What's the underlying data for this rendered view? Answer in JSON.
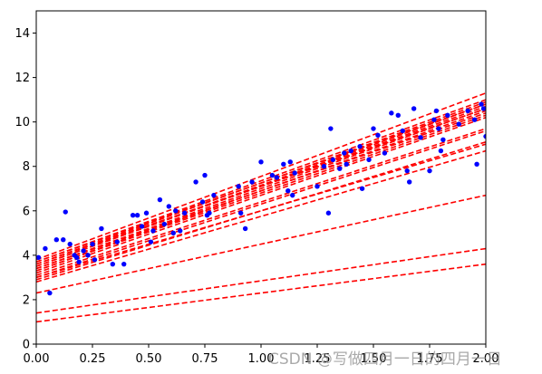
{
  "chart_data": {
    "type": "scatter",
    "xlim": [
      0.0,
      2.0
    ],
    "ylim": [
      0,
      15
    ],
    "x_ticks": [
      0.0,
      0.25,
      0.5,
      0.75,
      1.0,
      1.25,
      1.5,
      1.75,
      2.0
    ],
    "x_tick_labels": [
      "0.00",
      "0.25",
      "0.50",
      "0.75",
      "1.00",
      "1.25",
      "1.50",
      "1.75",
      "2.00"
    ],
    "y_ticks": [
      0,
      2,
      4,
      6,
      8,
      10,
      12,
      14
    ],
    "y_tick_labels": [
      "0",
      "2",
      "4",
      "6",
      "8",
      "10",
      "12",
      "14"
    ],
    "grid": false,
    "colors": {
      "points": "#0000ff",
      "lines": "#ff0000"
    },
    "series": [
      {
        "kind": "points",
        "points": [
          [
            0.01,
            3.9
          ],
          [
            0.04,
            4.3
          ],
          [
            0.06,
            2.3
          ],
          [
            0.09,
            4.7
          ],
          [
            0.12,
            4.7
          ],
          [
            0.13,
            5.95
          ],
          [
            0.15,
            4.5
          ],
          [
            0.17,
            4.0
          ],
          [
            0.18,
            3.9
          ],
          [
            0.19,
            3.7
          ],
          [
            0.21,
            4.2
          ],
          [
            0.23,
            4.0
          ],
          [
            0.25,
            4.5
          ],
          [
            0.26,
            3.8
          ],
          [
            0.29,
            5.2
          ],
          [
            0.34,
            3.6
          ],
          [
            0.36,
            4.6
          ],
          [
            0.39,
            3.6
          ],
          [
            0.43,
            5.8
          ],
          [
            0.45,
            5.8
          ],
          [
            0.47,
            5.3
          ],
          [
            0.49,
            5.9
          ],
          [
            0.51,
            4.6
          ],
          [
            0.52,
            5.1
          ],
          [
            0.55,
            6.5
          ],
          [
            0.57,
            5.4
          ],
          [
            0.59,
            6.2
          ],
          [
            0.61,
            5.0
          ],
          [
            0.62,
            6.0
          ],
          [
            0.64,
            5.1
          ],
          [
            0.66,
            5.9
          ],
          [
            0.71,
            7.3
          ],
          [
            0.74,
            6.4
          ],
          [
            0.75,
            7.6
          ],
          [
            0.76,
            5.8
          ],
          [
            0.77,
            5.9
          ],
          [
            0.79,
            6.7
          ],
          [
            0.9,
            7.1
          ],
          [
            0.91,
            5.9
          ],
          [
            0.93,
            5.2
          ],
          [
            0.96,
            7.3
          ],
          [
            1.0,
            8.2
          ],
          [
            1.05,
            7.6
          ],
          [
            1.07,
            7.5
          ],
          [
            1.1,
            8.1
          ],
          [
            1.12,
            6.9
          ],
          [
            1.13,
            8.2
          ],
          [
            1.14,
            6.7
          ],
          [
            1.15,
            7.7
          ],
          [
            1.25,
            7.1
          ],
          [
            1.28,
            8.0
          ],
          [
            1.3,
            5.9
          ],
          [
            1.31,
            9.7
          ],
          [
            1.32,
            8.3
          ],
          [
            1.35,
            7.9
          ],
          [
            1.37,
            8.6
          ],
          [
            1.38,
            8.1
          ],
          [
            1.4,
            8.7
          ],
          [
            1.44,
            8.9
          ],
          [
            1.45,
            7.0
          ],
          [
            1.48,
            8.3
          ],
          [
            1.5,
            9.7
          ],
          [
            1.52,
            9.4
          ],
          [
            1.55,
            8.6
          ],
          [
            1.58,
            10.4
          ],
          [
            1.61,
            10.3
          ],
          [
            1.63,
            9.6
          ],
          [
            1.65,
            7.8
          ],
          [
            1.66,
            7.3
          ],
          [
            1.68,
            10.6
          ],
          [
            1.71,
            9.3
          ],
          [
            1.75,
            7.8
          ],
          [
            1.77,
            10.1
          ],
          [
            1.78,
            10.5
          ],
          [
            1.79,
            9.7
          ],
          [
            1.8,
            8.7
          ],
          [
            1.81,
            9.2
          ],
          [
            1.83,
            10.3
          ],
          [
            1.88,
            9.9
          ],
          [
            1.92,
            10.5
          ],
          [
            1.95,
            10.1
          ],
          [
            1.96,
            8.1
          ],
          [
            1.98,
            10.8
          ],
          [
            1.99,
            10.6
          ],
          [
            2.0,
            9.35
          ]
        ]
      },
      {
        "kind": "lines",
        "lines": [
          [
            1.0,
            3.6
          ],
          [
            1.4,
            4.3
          ],
          [
            2.3,
            6.7
          ],
          [
            2.8,
            8.7
          ],
          [
            2.9,
            9.1
          ],
          [
            3.0,
            9.0
          ],
          [
            3.0,
            9.6
          ],
          [
            3.1,
            9.7
          ],
          [
            3.2,
            10.2
          ],
          [
            3.3,
            10.3
          ],
          [
            3.3,
            10.5
          ],
          [
            3.4,
            10.4
          ],
          [
            3.4,
            10.6
          ],
          [
            3.5,
            10.7
          ],
          [
            3.5,
            10.8
          ],
          [
            3.6,
            10.9
          ],
          [
            3.6,
            10.6
          ],
          [
            3.7,
            10.8
          ],
          [
            3.7,
            11.0
          ],
          [
            3.8,
            11.3
          ]
        ]
      }
    ],
    "watermark": "CSDN @写做四月一日的四月一日"
  }
}
